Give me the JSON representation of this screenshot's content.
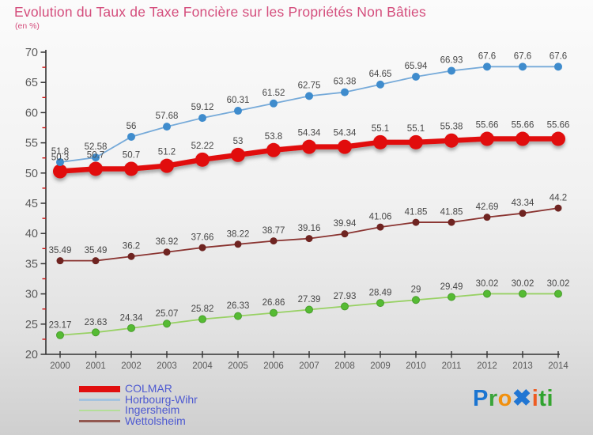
{
  "header": {
    "title": "Evolution du Taux de Taxe Foncière sur les Propriétés Non Bâties",
    "subtitle": "(en %)",
    "title_color": "#d44d7c"
  },
  "chart_data": {
    "type": "line",
    "title": "Evolution du Taux de Taxe Foncière sur les Propriétés Non Bâties",
    "subtitle": "(en %)",
    "x": [
      2000,
      2001,
      2002,
      2003,
      2004,
      2005,
      2006,
      2007,
      2008,
      2009,
      2010,
      2011,
      2012,
      2013,
      2014
    ],
    "xlabel": "",
    "ylabel": "en %",
    "ylim": [
      20,
      70
    ],
    "ytick_step": 5,
    "minor_tick_step": 2.5,
    "grid": false,
    "legend_position": "bottom-left",
    "axis_color": "#333333",
    "tick_label_color": "#5a5a5a",
    "minor_tick_color": "#cc1111",
    "data_label_color": "#474747",
    "series": [
      {
        "name": "COLMAR",
        "color": "#e10e0e",
        "marker_color": "#e10e0e",
        "line_width": 6.5,
        "marker_radius": 9,
        "shadow": true,
        "values": [
          50.3,
          50.7,
          50.7,
          51.2,
          52.22,
          53,
          53.8,
          54.34,
          54.34,
          55.1,
          55.1,
          55.38,
          55.66,
          55.66,
          55.66
        ]
      },
      {
        "name": "Horbourg-Wihr",
        "color": "#76aad9",
        "marker_color": "#3f8ccd",
        "line_width": 1.8,
        "marker_radius": 5,
        "shadow": false,
        "values": [
          51.8,
          52.58,
          56,
          57.68,
          59.12,
          60.31,
          61.52,
          62.75,
          63.38,
          64.65,
          65.94,
          66.93,
          67.6,
          67.6,
          67.6
        ]
      },
      {
        "name": "Ingersheim",
        "color": "#98d164",
        "marker_color": "#55bb33",
        "marker_stroke": "#4a9e2e",
        "line_width": 1.8,
        "marker_radius": 4.5,
        "shadow": false,
        "values": [
          23.17,
          23.63,
          24.34,
          25.07,
          25.82,
          26.33,
          26.86,
          27.39,
          27.93,
          28.49,
          29,
          29.49,
          30.02,
          30.02,
          30.02
        ]
      },
      {
        "name": "Wettolsheim",
        "color": "#8a3431",
        "marker_color": "#6f2421",
        "line_width": 1.8,
        "marker_radius": 4.5,
        "shadow": false,
        "values": [
          35.49,
          35.49,
          36.2,
          36.92,
          37.66,
          38.22,
          38.77,
          39.16,
          39.94,
          41.06,
          41.85,
          41.85,
          42.69,
          43.34,
          44.2
        ]
      }
    ]
  },
  "legend": {
    "text_color": "#4e5ad1",
    "items": [
      {
        "label": "COLMAR",
        "swatch_color": "#e10e0e",
        "thick": true
      },
      {
        "label": "Horbourg-Wihr",
        "swatch_color": "#a5c3de",
        "thick": false
      },
      {
        "label": "Ingersheim",
        "swatch_color": "#b4de99",
        "thick": false
      },
      {
        "label": "Wettolsheim",
        "swatch_color": "#925850",
        "thick": false
      }
    ]
  },
  "logo": {
    "text": "Proxiti",
    "letters": [
      {
        "char": "P",
        "color": "#1b75d1"
      },
      {
        "char": "r",
        "color": "#3aa43a"
      },
      {
        "char": "o",
        "color": "#f1900e"
      },
      {
        "char": "✖",
        "color": "#2176d3"
      },
      {
        "char": "i",
        "color": "#ee5c22"
      },
      {
        "char": "t",
        "color": "#2fa32f"
      },
      {
        "char": "i",
        "color": "#35a52f"
      }
    ]
  }
}
